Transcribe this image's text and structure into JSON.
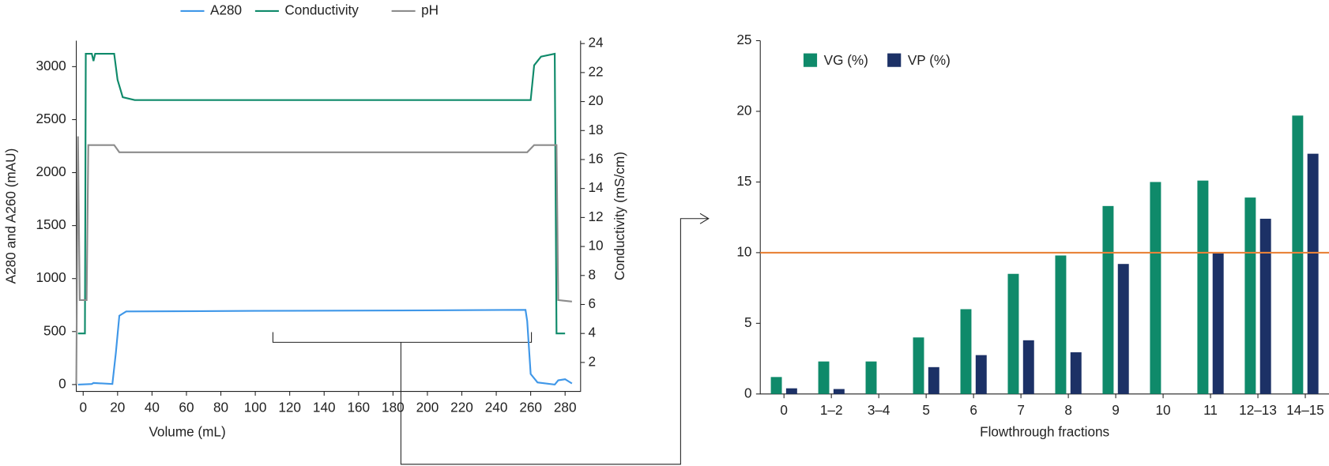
{
  "chart_data": [
    {
      "type": "line",
      "xlabel": "Volume (mL)",
      "ylabel": "A280 and A260 (mAU)",
      "y2label": "Conductivity (mS/cm)",
      "xlim": [
        -4,
        289
      ],
      "xticks": [
        0,
        20,
        40,
        60,
        80,
        100,
        120,
        140,
        160,
        180,
        200,
        220,
        240,
        260,
        280
      ],
      "ylim": [
        -65,
        3245
      ],
      "yticks": [
        0,
        500,
        1000,
        1500,
        2000,
        2500,
        3000
      ],
      "y2lim": [
        0,
        24.2
      ],
      "y2ticks": [
        2,
        4,
        6,
        8,
        10,
        12,
        14,
        16,
        18,
        20,
        22,
        24
      ],
      "series": [
        {
          "name": "A280",
          "color": "#3f97e8",
          "axis": "y",
          "x": [
            -3,
            5,
            6,
            17,
            19,
            21,
            25,
            100,
            200,
            257,
            258,
            260,
            264,
            274,
            276,
            280,
            284
          ],
          "values": [
            0,
            5,
            15,
            5,
            300,
            650,
            690,
            695,
            700,
            705,
            600,
            100,
            20,
            0,
            40,
            50,
            10
          ]
        },
        {
          "name": "Conductivity",
          "color": "#0f8a6a",
          "axis": "y2",
          "x": [
            -3,
            1,
            1.5,
            5,
            6,
            7,
            18,
            20,
            23,
            30,
            260,
            262,
            266,
            274,
            275,
            280
          ],
          "values": [
            4,
            4,
            23.3,
            23.3,
            22.8,
            23.3,
            23.3,
            21.5,
            20.3,
            20.1,
            20.1,
            22.5,
            23.1,
            23.3,
            4,
            4
          ]
        },
        {
          "name": "pH",
          "color": "#8c8c8c",
          "axis": "y2",
          "x": [
            -4,
            -3,
            -2,
            2,
            3,
            18,
            21,
            258,
            262,
            275,
            276,
            284
          ],
          "values": [
            0.5,
            17.6,
            6.3,
            6.3,
            17,
            17,
            16.5,
            16.5,
            17,
            17,
            6.3,
            6.2
          ]
        }
      ]
    },
    {
      "type": "bar",
      "xlabel": "Flowthrough fractions",
      "categories": [
        "0",
        "1–2",
        "3–4",
        "5",
        "6",
        "7",
        "8",
        "9",
        "10",
        "11",
        "12–13",
        "14–15"
      ],
      "ylim": [
        0,
        25
      ],
      "yticks": [
        0,
        5,
        10,
        15,
        20,
        25
      ],
      "reference_line": {
        "value": 10,
        "color": "#e8833a"
      },
      "series": [
        {
          "name": "VG (%)",
          "color": "#0f8a6a",
          "values": [
            1.2,
            2.3,
            2.3,
            4.0,
            6.0,
            8.5,
            9.8,
            13.3,
            15.0,
            15.1,
            13.9,
            19.7
          ]
        },
        {
          "name": "VP (%)",
          "color": "#1c3166",
          "values": [
            0.4,
            0.35,
            null,
            1.9,
            2.75,
            3.8,
            2.95,
            9.2,
            null,
            10.0,
            12.4,
            17.0
          ]
        }
      ]
    }
  ]
}
